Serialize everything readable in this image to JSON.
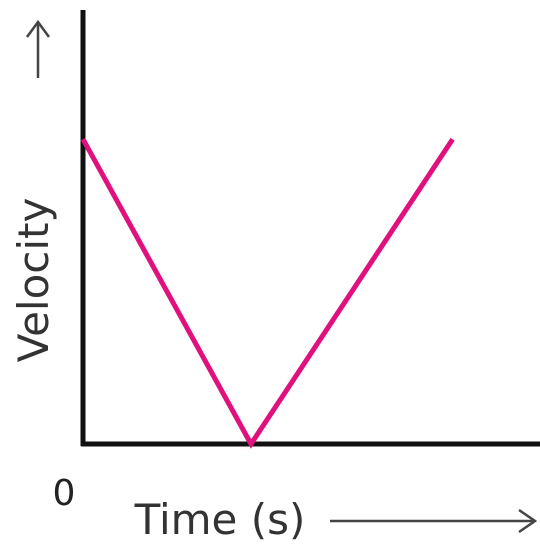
{
  "chart_data": {
    "type": "line",
    "title": "",
    "xlabel": "Time (s)",
    "ylabel": "Velocity",
    "origin_label": "0",
    "x": [
      0,
      5,
      11
    ],
    "series": [
      {
        "values": [
          10,
          0,
          10
        ]
      }
    ],
    "xlim": [
      0,
      13.6
    ],
    "ylim": [
      0,
      14.5
    ],
    "grid": false,
    "legend": "none",
    "line_color": "#e0107f",
    "axis_color": "#111111",
    "arrow_color": "#444444"
  }
}
